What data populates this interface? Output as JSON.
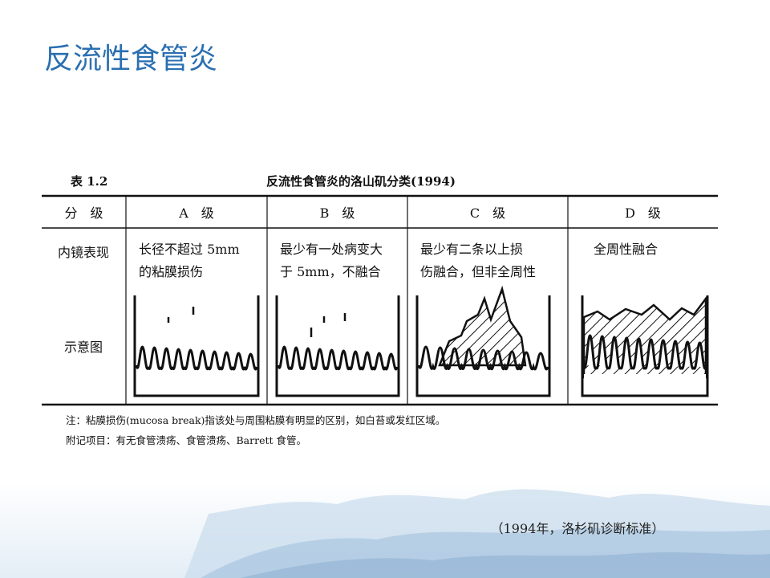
{
  "title": "反流性食管炎",
  "table": {
    "caption_label": "表 1.2",
    "caption": "反流性食管炎的洛山矶分类(1994)",
    "header": [
      "分　级",
      "A　级",
      "B　级",
      "C　级",
      "D　级"
    ],
    "rows": [
      {
        "label": "内镜表现",
        "cells": [
          [
            "长径不超过 5mm",
            "的粘膜损伤"
          ],
          [
            "最少有一处病变大",
            "于 5mm，不融合"
          ],
          [
            "最少有二条以上损",
            "伤融合，但非全周性"
          ],
          [
            "全周性融合"
          ]
        ]
      },
      {
        "label": "示意图"
      }
    ],
    "notes": [
      "注：粘膜损伤(mucosa break)指该处与周围粘膜有明显的区别，如白苔或发红区域。",
      "附记项目：有无食管溃疡、食管溃疡、Barrett 食管。"
    ]
  },
  "footer_caption": "（1994年，洛杉矶诊断标准）"
}
